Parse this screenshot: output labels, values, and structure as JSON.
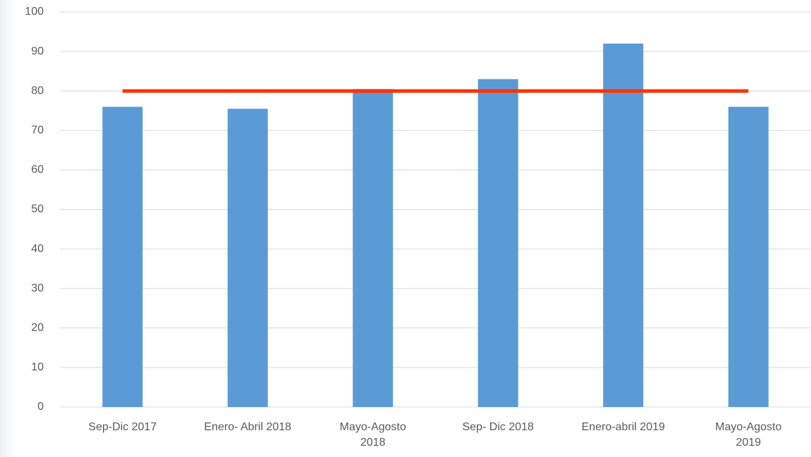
{
  "chart_data": {
    "type": "bar",
    "categories": [
      "Sep-Dic 2017",
      "Enero- Abril 2018",
      "Mayo-Agosto\n2018",
      "Sep- Dic 2018",
      "Enero-abril 2019",
      "Mayo-Agosto\n2019"
    ],
    "series": [
      {
        "type": "bar",
        "color": "#5b9bd5",
        "values": [
          76,
          75.5,
          80.5,
          83,
          92,
          76
        ]
      },
      {
        "type": "line",
        "color": "#ff3300",
        "values": [
          80,
          80,
          80,
          80,
          80,
          80
        ]
      }
    ],
    "ylim": [
      0,
      100
    ],
    "yticks": [
      0,
      10,
      20,
      30,
      40,
      50,
      60,
      70,
      80,
      90,
      100
    ],
    "grid": true
  }
}
